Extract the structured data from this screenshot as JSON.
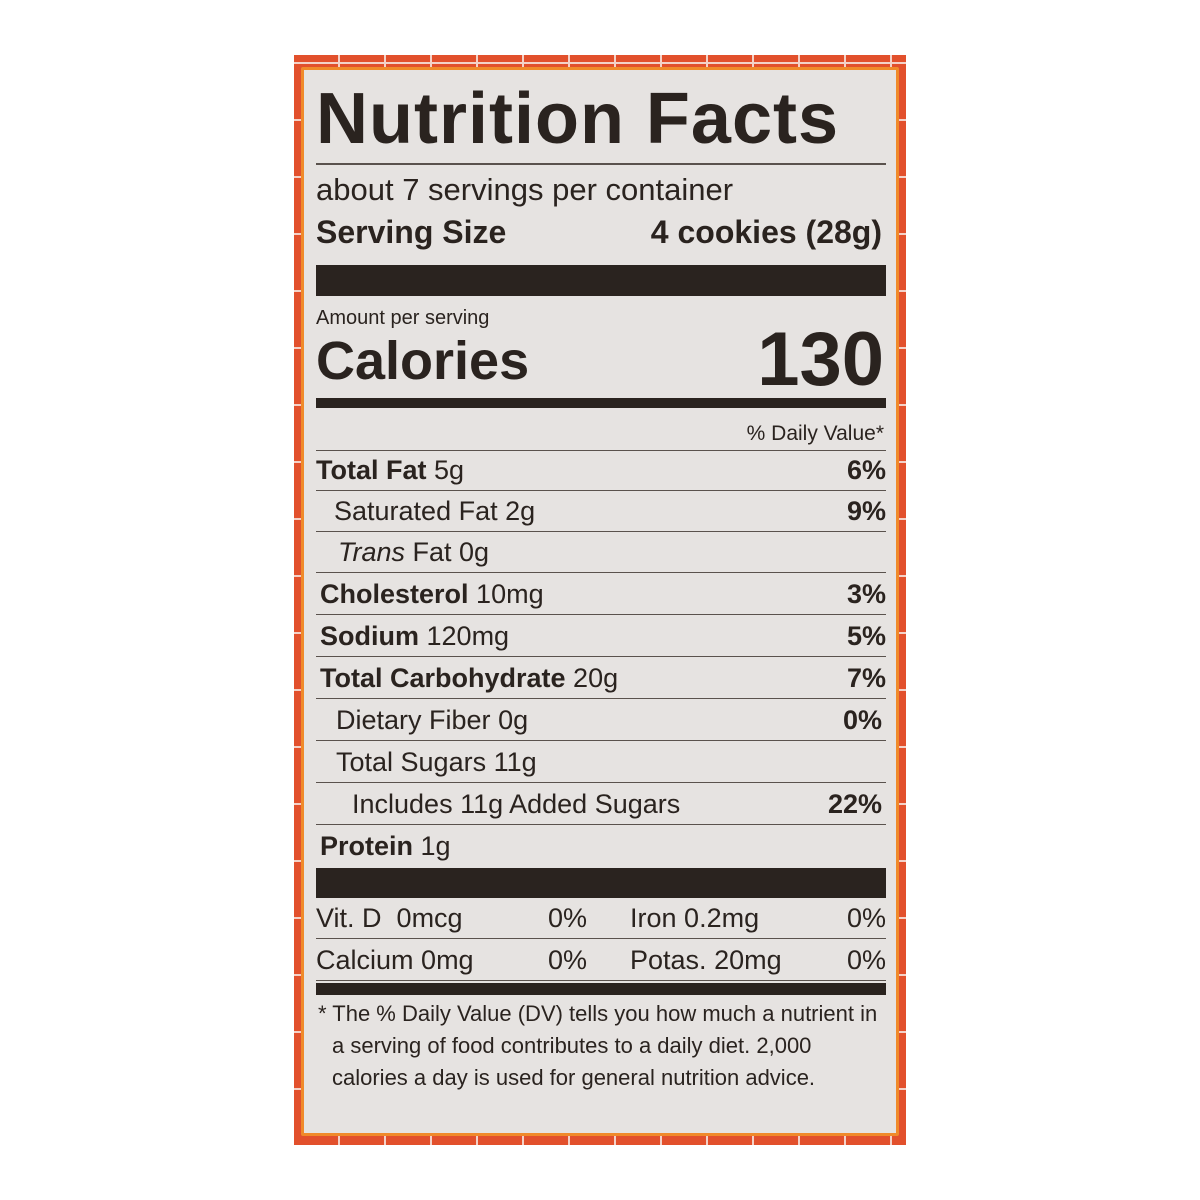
{
  "colors": {
    "border": "#e2502c",
    "panel": "#e6e3e1",
    "ink": "#2a231f"
  },
  "title": "Nutrition Facts",
  "servings": "about 7 servings per container",
  "serving_size_label": "Serving Size",
  "serving_size_value": "4 cookies (28g)",
  "amount_label": "Amount per serving",
  "calories_label": "Calories",
  "calories_value": "130",
  "dv_header": "% Daily Value*",
  "rows": [
    {
      "name": "Total Fat",
      "amount": "5g",
      "dv": "6%"
    },
    {
      "name": "Saturated Fat",
      "amount": "2g",
      "dv": "9%"
    },
    {
      "name": "Trans",
      "suffix": "Fat 0g",
      "dv": ""
    },
    {
      "name": "Cholesterol",
      "amount": "10mg",
      "dv": "3%"
    },
    {
      "name": "Sodium",
      "amount": "120mg",
      "dv": "5%"
    },
    {
      "name": "Total Carbohydrate",
      "amount": "20g",
      "dv": "7%"
    },
    {
      "name": "Dietary Fiber",
      "amount": "0g",
      "dv": "0%"
    },
    {
      "name": "Total Sugars",
      "amount": "11g",
      "dv": ""
    },
    {
      "name": "Includes 11g Added Sugars",
      "amount": "",
      "dv": "22%"
    },
    {
      "name": "Protein",
      "amount": "1g",
      "dv": ""
    }
  ],
  "vitamins": [
    {
      "name": "Vit. D",
      "amount": "0mcg",
      "dv": "0%"
    },
    {
      "name": "Iron",
      "amount": "0.2mg",
      "dv": "0%"
    },
    {
      "name": "Calcium",
      "amount": "0mg",
      "dv": "0%"
    },
    {
      "name": "Potas.",
      "amount": "20mg",
      "dv": "0%"
    }
  ],
  "footnote": "* The % Daily Value (DV) tells you how much a nutrient in a serving of food contributes to a daily diet. 2,000 calories a day is used for general nutrition advice."
}
